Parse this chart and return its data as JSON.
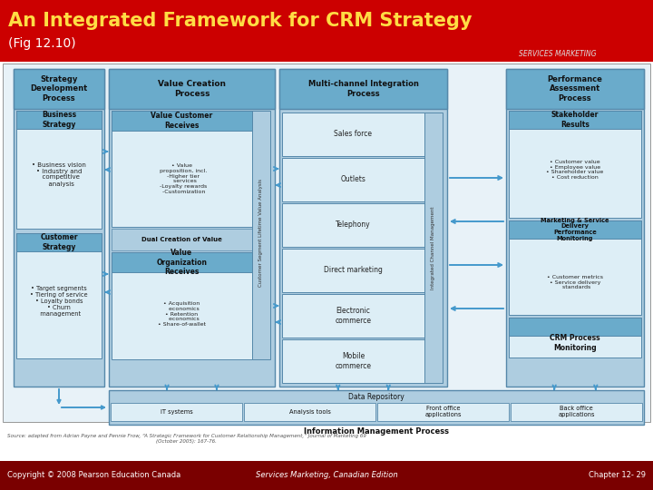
{
  "title_line1": "An Integrated Framework for CRM Strategy",
  "title_line2": "(Fig 12.10)",
  "header_bg": "#cc0000",
  "title_color": "#ffdd44",
  "subtitle_color": "#ffffff",
  "diagram_bg": "#ffffff",
  "box_light_blue": "#aecde0",
  "box_medium_blue": "#6aabcb",
  "box_outline": "#5588aa",
  "box_white": "#ddeef6",
  "footer_bg": "#7a0000",
  "footer_text": "#ffffff",
  "footer_left": "Copyright © 2008 Pearson Education Canada",
  "footer_center": "Services Marketing, Canadian Edition",
  "footer_right": "Chapter 12- 29",
  "source_text": "Source: adapted from Adrian Payne and Pennie Frow, “A Strategic Framework for Customer Relationship Management,” Journal of Marketing 69\n(October 2005): 167-76.",
  "arrow_color": "#4499cc"
}
